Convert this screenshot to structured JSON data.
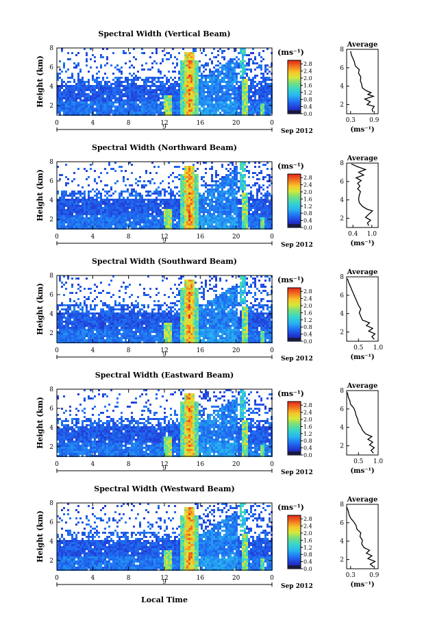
{
  "chart_data": [
    {
      "type": "heatmap",
      "title": "Spectral Width (Vertical Beam)",
      "ylabel": "Height (km)",
      "ylim": [
        1,
        8
      ],
      "yticks": [
        "2",
        "4",
        "6",
        "8"
      ],
      "xlim": [
        0,
        24
      ],
      "xticks": [
        "0",
        "4",
        "8",
        "12",
        "16",
        "20",
        "0"
      ],
      "date_marker": "9",
      "date_label": "Sep 2012",
      "colorbar": {
        "unit": "(ms⁻¹)",
        "ticks": [
          "0.0",
          "0.4",
          "0.8",
          "1.2",
          "1.6",
          "2.0",
          "2.4",
          "2.8"
        ],
        "range": [
          0,
          3.0
        ]
      },
      "average": {
        "title": "Average",
        "xlabel": "(ms⁻¹)",
        "xticks": [
          "0.3",
          "0.9"
        ],
        "xlim": [
          0.2,
          1.0
        ],
        "yticks": [
          "2",
          "4",
          "6",
          "8"
        ],
        "ylim": [
          1,
          8
        ],
        "profile": [
          [
            1.2,
            0.86
          ],
          [
            1.5,
            0.85
          ],
          [
            1.8,
            0.9
          ],
          [
            2.0,
            0.72
          ],
          [
            2.3,
            0.8
          ],
          [
            2.6,
            0.66
          ],
          [
            2.9,
            0.88
          ],
          [
            3.1,
            0.74
          ],
          [
            3.3,
            0.82
          ],
          [
            3.5,
            0.7
          ],
          [
            3.8,
            0.6
          ],
          [
            4.2,
            0.58
          ],
          [
            4.6,
            0.55
          ],
          [
            5.0,
            0.56
          ],
          [
            5.4,
            0.5
          ],
          [
            5.8,
            0.52
          ],
          [
            6.2,
            0.42
          ],
          [
            6.6,
            0.4
          ],
          [
            7.0,
            0.36
          ],
          [
            7.4,
            0.32
          ],
          [
            7.8,
            0.3
          ]
        ]
      }
    },
    {
      "type": "heatmap",
      "title": "Spectral Width (Northward Beam)",
      "ylabel": "Height (km)",
      "ylim": [
        1,
        8
      ],
      "yticks": [
        "2",
        "4",
        "6",
        "8"
      ],
      "xlim": [
        0,
        24
      ],
      "xticks": [
        "0",
        "4",
        "8",
        "12",
        "16",
        "20",
        "0"
      ],
      "date_marker": "9",
      "date_label": "Sep 2012",
      "colorbar": {
        "unit": "(ms⁻¹)",
        "ticks": [
          "0.0",
          "0.4",
          "0.8",
          "1.2",
          "1.6",
          "2.0",
          "2.4",
          "2.8"
        ],
        "range": [
          0,
          3.0
        ]
      },
      "average": {
        "title": "Average",
        "xlabel": "(ms⁻¹)",
        "xticks": [
          "0.4",
          "1.0"
        ],
        "xlim": [
          0.2,
          1.2
        ],
        "yticks": [
          "2",
          "4",
          "6",
          "8"
        ],
        "ylim": [
          1,
          8
        ],
        "profile": [
          [
            1.2,
            0.9
          ],
          [
            1.5,
            0.86
          ],
          [
            1.8,
            0.96
          ],
          [
            2.1,
            0.8
          ],
          [
            2.5,
            0.92
          ],
          [
            2.8,
            1.02
          ],
          [
            3.0,
            0.84
          ],
          [
            3.3,
            0.7
          ],
          [
            3.7,
            0.6
          ],
          [
            4.1,
            0.58
          ],
          [
            4.5,
            0.6
          ],
          [
            4.9,
            0.64
          ],
          [
            5.2,
            0.55
          ],
          [
            5.5,
            0.62
          ],
          [
            5.8,
            0.55
          ],
          [
            6.1,
            0.66
          ],
          [
            6.4,
            0.5
          ],
          [
            6.7,
            0.74
          ],
          [
            7.0,
            0.58
          ],
          [
            7.3,
            0.8
          ],
          [
            7.6,
            0.55
          ],
          [
            7.9,
            0.35
          ]
        ]
      }
    },
    {
      "type": "heatmap",
      "title": "Spectral Width (Southward Beam)",
      "ylabel": "Height (km)",
      "ylim": [
        1,
        8
      ],
      "yticks": [
        "2",
        "4",
        "6",
        "8"
      ],
      "xlim": [
        0,
        24
      ],
      "xticks": [
        "0",
        "4",
        "8",
        "12",
        "16",
        "20",
        "0"
      ],
      "date_marker": "9",
      "date_label": "Sep 2012",
      "colorbar": {
        "unit": "(ms⁻¹)",
        "ticks": [
          "0.0",
          "0.4",
          "0.8",
          "1.2",
          "1.6",
          "2.0",
          "2.4",
          "2.8"
        ],
        "range": [
          0,
          3.0
        ]
      },
      "average": {
        "title": "Average",
        "xlabel": "(ms⁻¹)",
        "xticks": [
          "0.5",
          "1.0"
        ],
        "xlim": [
          0.2,
          1.0
        ],
        "yticks": [
          "2",
          "4",
          "6",
          "8"
        ],
        "ylim": [
          1,
          8
        ],
        "profile": [
          [
            1.2,
            0.9
          ],
          [
            1.5,
            0.84
          ],
          [
            1.8,
            0.92
          ],
          [
            2.1,
            0.76
          ],
          [
            2.4,
            0.86
          ],
          [
            2.7,
            0.7
          ],
          [
            3.0,
            0.78
          ],
          [
            3.3,
            0.6
          ],
          [
            3.7,
            0.56
          ],
          [
            4.1,
            0.52
          ],
          [
            4.5,
            0.56
          ],
          [
            4.9,
            0.5
          ],
          [
            5.3,
            0.46
          ],
          [
            5.7,
            0.42
          ],
          [
            6.1,
            0.38
          ],
          [
            6.5,
            0.34
          ],
          [
            6.9,
            0.3
          ],
          [
            7.3,
            0.26
          ],
          [
            7.8,
            0.22
          ]
        ]
      }
    },
    {
      "type": "heatmap",
      "title": "Spectral Width (Eastward Beam)",
      "ylabel": "Height (km)",
      "ylim": [
        1,
        8
      ],
      "yticks": [
        "2",
        "4",
        "6",
        "8"
      ],
      "xlim": [
        0,
        24
      ],
      "xticks": [
        "0",
        "4",
        "8",
        "12",
        "16",
        "20",
        "0"
      ],
      "date_marker": "9",
      "date_label": "Sep 2012",
      "colorbar": {
        "unit": "(ms⁻¹)",
        "ticks": [
          "0.0",
          "0.4",
          "0.8",
          "1.2",
          "1.6",
          "2.0",
          "2.4",
          "2.8"
        ],
        "range": [
          0,
          3.0
        ]
      },
      "average": {
        "title": "Average",
        "xlabel": "(ms⁻¹)",
        "xticks": [
          "0.5",
          "1.0"
        ],
        "xlim": [
          0.2,
          1.0
        ],
        "yticks": [
          "2",
          "4",
          "6",
          "8"
        ],
        "ylim": [
          1,
          8
        ],
        "profile": [
          [
            1.2,
            0.88
          ],
          [
            1.5,
            0.82
          ],
          [
            1.8,
            0.9
          ],
          [
            2.1,
            0.78
          ],
          [
            2.4,
            0.86
          ],
          [
            2.7,
            0.74
          ],
          [
            3.0,
            0.84
          ],
          [
            3.3,
            0.68
          ],
          [
            3.7,
            0.6
          ],
          [
            4.1,
            0.56
          ],
          [
            4.5,
            0.5
          ],
          [
            4.9,
            0.48
          ],
          [
            5.3,
            0.44
          ],
          [
            5.7,
            0.42
          ],
          [
            6.1,
            0.38
          ],
          [
            6.5,
            0.3
          ],
          [
            6.9,
            0.28
          ],
          [
            7.3,
            0.24
          ],
          [
            7.8,
            0.22
          ]
        ]
      }
    },
    {
      "type": "heatmap",
      "title": "Spectral Width (Westward Beam)",
      "ylabel": "Height (km)",
      "ylim": [
        1,
        8
      ],
      "yticks": [
        "2",
        "4",
        "6",
        "8"
      ],
      "xlim": [
        0,
        24
      ],
      "xticks": [
        "0",
        "4",
        "8",
        "12",
        "16",
        "20",
        "0"
      ],
      "date_marker": "9",
      "date_label": "Sep 2012",
      "colorbar": {
        "unit": "(ms⁻¹)",
        "ticks": [
          "0.0",
          "0.4",
          "0.8",
          "1.2",
          "1.6",
          "2.0",
          "2.4",
          "2.8"
        ],
        "range": [
          0,
          3.0
        ]
      },
      "average": {
        "title": "Average",
        "xlabel": "(ms⁻¹)",
        "xticks": [
          "0.3",
          "0.9"
        ],
        "xlim": [
          0.2,
          1.0
        ],
        "yticks": [
          "2",
          "4",
          "6",
          "8"
        ],
        "ylim": [
          1,
          8
        ],
        "profile": [
          [
            1.2,
            0.88
          ],
          [
            1.5,
            0.8
          ],
          [
            1.8,
            0.92
          ],
          [
            2.1,
            0.74
          ],
          [
            2.4,
            0.84
          ],
          [
            2.7,
            0.7
          ],
          [
            3.0,
            0.78
          ],
          [
            3.3,
            0.64
          ],
          [
            3.7,
            0.58
          ],
          [
            4.1,
            0.6
          ],
          [
            4.5,
            0.54
          ],
          [
            4.9,
            0.56
          ],
          [
            5.3,
            0.46
          ],
          [
            5.7,
            0.44
          ],
          [
            6.1,
            0.38
          ],
          [
            6.5,
            0.3
          ],
          [
            6.9,
            0.26
          ],
          [
            7.3,
            0.24
          ],
          [
            7.7,
            0.2
          ]
        ]
      }
    }
  ],
  "xlabel": "Local Time"
}
